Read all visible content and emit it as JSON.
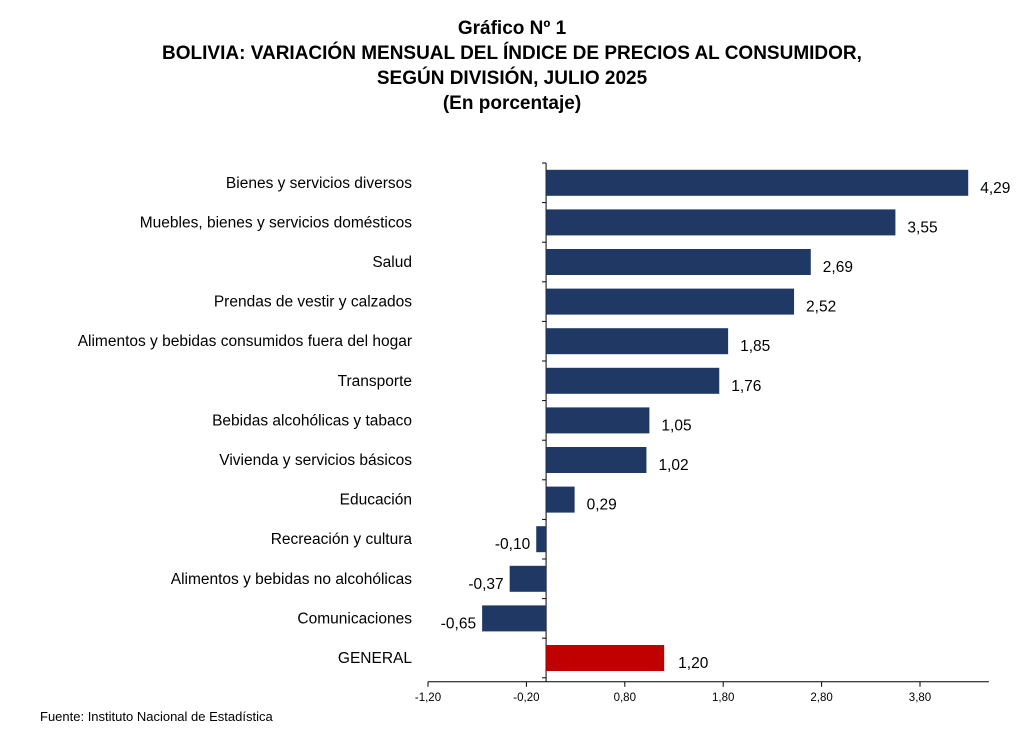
{
  "header": {
    "line1": "Gráfico Nº 1",
    "line2": "BOLIVIA: VARIACIÓN MENSUAL DEL ÍNDICE DE PRECIOS AL CONSUMIDOR,",
    "line3": "SEGÚN DIVISIÓN, JULIO 2025",
    "line4": "(En porcentaje)"
  },
  "source": "Fuente: Instituto Nacional de Estadística",
  "colors": {
    "bar": "#1f3864",
    "highlight": "#c00000"
  },
  "chart_data": {
    "type": "bar",
    "orientation": "horizontal",
    "categories": [
      "Bienes y servicios diversos",
      "Muebles, bienes y servicios domésticos",
      "Salud",
      "Prendas de vestir y calzados",
      "Alimentos y bebidas consumidos fuera del hogar",
      "Transporte",
      "Bebidas alcohólicas y tabaco",
      "Vivienda y servicios básicos",
      "Educación",
      "Recreación y cultura",
      "Alimentos y bebidas no alcohólicas",
      "Comunicaciones",
      "GENERAL"
    ],
    "values": [
      4.29,
      3.55,
      2.69,
      2.52,
      1.85,
      1.76,
      1.05,
      1.02,
      0.29,
      -0.1,
      -0.37,
      -0.65,
      1.2
    ],
    "value_labels": [
      "4,29",
      "3,55",
      "2,69",
      "2,52",
      "1,85",
      "1,76",
      "1,05",
      "1,02",
      "0,29",
      "-0,10",
      "-0,37",
      "-0,65",
      "1,20"
    ],
    "highlight": "GENERAL",
    "xlim": [
      -1.2,
      4.5
    ],
    "xticks": [
      -1.2,
      -0.2,
      0.8,
      1.8,
      2.8,
      3.8
    ],
    "xtick_labels": [
      "-1,20",
      "-0,20",
      "0,80",
      "1,80",
      "2,80",
      "3,80"
    ],
    "grid": false,
    "legend": "none"
  }
}
